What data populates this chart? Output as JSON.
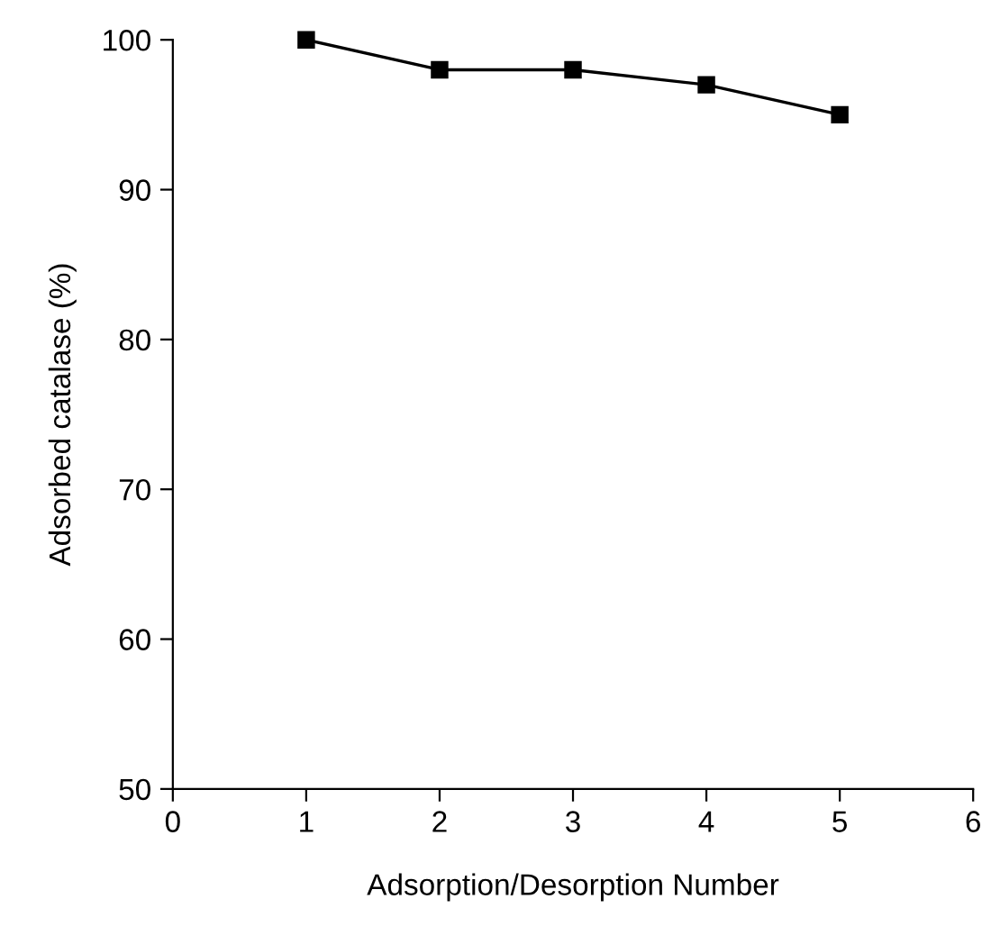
{
  "chart_data": {
    "type": "line",
    "xlabel": "Adsorption/Desorption Number",
    "ylabel": "Adsorbed catalase (%)",
    "x": [
      1,
      2,
      3,
      4,
      5
    ],
    "series": [
      {
        "color": "#000000",
        "values": [
          100,
          98,
          98,
          97,
          95
        ]
      }
    ],
    "xlim": [
      0,
      6
    ],
    "xticks": [
      0,
      1,
      2,
      3,
      4,
      5,
      6
    ],
    "ylim": [
      50,
      100
    ],
    "yticks": [
      50,
      60,
      70,
      80,
      90,
      100
    ],
    "marker": "square",
    "line_style": "solid",
    "grid": false
  }
}
